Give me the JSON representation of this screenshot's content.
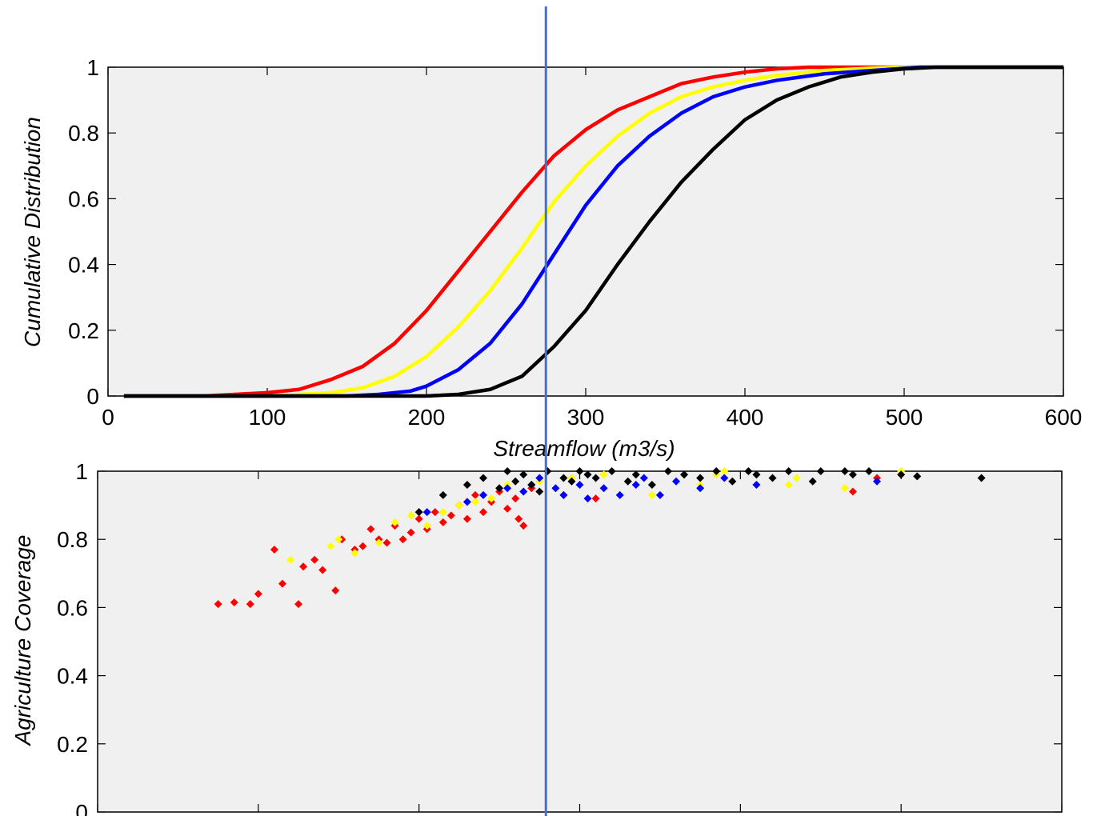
{
  "chart_data": [
    {
      "type": "line",
      "xlabel": "Streamflow (m3/s)",
      "ylabel": "Cumulative Distribution",
      "xlim": [
        0,
        600
      ],
      "ylim": [
        0,
        1
      ],
      "xticks": [
        0,
        100,
        200,
        300,
        400,
        500,
        600
      ],
      "yticks": [
        0,
        0.2,
        0.4,
        0.6,
        0.8,
        1
      ],
      "xtick_labels": [
        "0",
        "100",
        "200",
        "300",
        "400",
        "500",
        "600"
      ],
      "ytick_labels": [
        "0",
        "0.2",
        "0.4",
        "0.6",
        "0.8",
        "1"
      ],
      "grid": false,
      "background": "#f0f0f0",
      "series": [
        {
          "color": "#ff0000",
          "x": [
            10,
            60,
            100,
            120,
            140,
            160,
            180,
            200,
            220,
            240,
            260,
            280,
            300,
            320,
            340,
            360,
            380,
            400,
            420,
            440,
            470,
            500,
            600
          ],
          "y": [
            0,
            0,
            0.01,
            0.02,
            0.05,
            0.09,
            0.16,
            0.26,
            0.38,
            0.5,
            0.62,
            0.73,
            0.81,
            0.87,
            0.91,
            0.95,
            0.97,
            0.985,
            0.995,
            1,
            1,
            1,
            1
          ]
        },
        {
          "color": "#ffff00",
          "x": [
            10,
            100,
            140,
            160,
            180,
            200,
            220,
            240,
            260,
            280,
            300,
            320,
            340,
            360,
            380,
            400,
            420,
            450,
            480,
            500,
            600
          ],
          "y": [
            0,
            0,
            0.01,
            0.025,
            0.06,
            0.12,
            0.21,
            0.32,
            0.45,
            0.59,
            0.7,
            0.79,
            0.86,
            0.91,
            0.94,
            0.96,
            0.975,
            0.99,
            0.997,
            1,
            1
          ]
        },
        {
          "color": "#0000ff",
          "x": [
            10,
            150,
            170,
            190,
            200,
            220,
            240,
            260,
            280,
            300,
            320,
            340,
            360,
            380,
            400,
            420,
            450,
            480,
            510,
            600
          ],
          "y": [
            0,
            0,
            0.005,
            0.015,
            0.03,
            0.08,
            0.16,
            0.28,
            0.43,
            0.58,
            0.7,
            0.79,
            0.86,
            0.91,
            0.94,
            0.96,
            0.98,
            0.99,
            1,
            1
          ]
        },
        {
          "color": "#000000",
          "x": [
            10,
            200,
            220,
            240,
            260,
            280,
            300,
            320,
            340,
            360,
            380,
            400,
            420,
            440,
            460,
            480,
            500,
            520,
            600
          ],
          "y": [
            0,
            0,
            0.005,
            0.02,
            0.06,
            0.15,
            0.26,
            0.4,
            0.53,
            0.65,
            0.75,
            0.84,
            0.9,
            0.94,
            0.97,
            0.985,
            0.995,
            1,
            1
          ]
        }
      ]
    },
    {
      "type": "scatter",
      "xlabel": "",
      "ylabel": "Agriculture Coverage",
      "xlim": [
        0,
        600
      ],
      "ylim": [
        0,
        1
      ],
      "xticks": [
        0,
        100,
        200,
        300,
        400,
        500,
        600
      ],
      "yticks": [
        0,
        0.2,
        0.4,
        0.6,
        0.8,
        1
      ],
      "ytick_labels": [
        "0",
        "0.2",
        "0.4",
        "0.6",
        "0.8",
        "1"
      ],
      "grid": false,
      "background": "#f0f0f0",
      "series": [
        {
          "color": "#ff0000",
          "x": [
            75,
            85,
            95,
            100,
            110,
            115,
            125,
            128,
            135,
            140,
            148,
            152,
            160,
            165,
            170,
            175,
            180,
            185,
            190,
            195,
            200,
            205,
            210,
            215,
            220,
            225,
            230,
            235,
            240,
            245,
            250,
            255,
            260,
            262,
            265,
            270,
            290,
            310,
            470,
            485
          ],
          "y": [
            0.61,
            0.615,
            0.61,
            0.64,
            0.77,
            0.67,
            0.61,
            0.72,
            0.74,
            0.71,
            0.65,
            0.8,
            0.77,
            0.78,
            0.83,
            0.8,
            0.79,
            0.84,
            0.8,
            0.82,
            0.86,
            0.83,
            0.88,
            0.85,
            0.87,
            0.9,
            0.86,
            0.93,
            0.88,
            0.91,
            0.94,
            0.89,
            0.92,
            0.86,
            0.84,
            0.95,
            0.93,
            0.92,
            0.94,
            0.98
          ]
        },
        {
          "color": "#ffff00",
          "x": [
            120,
            145,
            150,
            160,
            175,
            185,
            195,
            205,
            215,
            225,
            235,
            245,
            255,
            265,
            275,
            285,
            295,
            315,
            330,
            345,
            375,
            385,
            390,
            395,
            430,
            435,
            465,
            500
          ],
          "y": [
            0.74,
            0.78,
            0.8,
            0.76,
            0.79,
            0.85,
            0.87,
            0.84,
            0.88,
            0.9,
            0.91,
            0.92,
            0.96,
            0.94,
            0.97,
            0.95,
            0.98,
            0.99,
            0.97,
            0.93,
            0.96,
            0.99,
            1.0,
            0.97,
            0.96,
            0.98,
            0.95,
            1.0
          ]
        },
        {
          "color": "#0000ff",
          "x": [
            205,
            230,
            240,
            255,
            265,
            270,
            275,
            285,
            290,
            300,
            305,
            315,
            325,
            335,
            340,
            350,
            360,
            365,
            375,
            390,
            410,
            485
          ],
          "y": [
            0.88,
            0.91,
            0.93,
            0.95,
            0.94,
            0.96,
            0.98,
            0.95,
            0.93,
            0.96,
            0.92,
            0.95,
            0.93,
            0.96,
            0.98,
            0.93,
            0.97,
            0.99,
            0.95,
            0.98,
            0.96,
            0.97
          ]
        },
        {
          "color": "#000000",
          "x": [
            200,
            215,
            230,
            240,
            250,
            255,
            260,
            265,
            270,
            275,
            280,
            290,
            295,
            300,
            305,
            310,
            320,
            330,
            335,
            345,
            355,
            365,
            375,
            385,
            395,
            405,
            410,
            420,
            430,
            445,
            450,
            465,
            470,
            480,
            500,
            510,
            550
          ],
          "y": [
            0.88,
            0.93,
            0.96,
            0.98,
            0.95,
            1.0,
            0.97,
            0.99,
            0.96,
            0.94,
            1.0,
            0.98,
            0.97,
            1.0,
            0.99,
            0.98,
            1.0,
            0.97,
            0.99,
            0.96,
            1.0,
            0.99,
            0.98,
            1.0,
            0.97,
            1.0,
            0.99,
            0.98,
            1.0,
            0.97,
            1.0,
            1.0,
            0.99,
            1.0,
            0.99,
            0.985,
            0.98
          ]
        }
      ]
    }
  ],
  "marker_line": {
    "color": "#4472c4",
    "x_value": 275
  }
}
